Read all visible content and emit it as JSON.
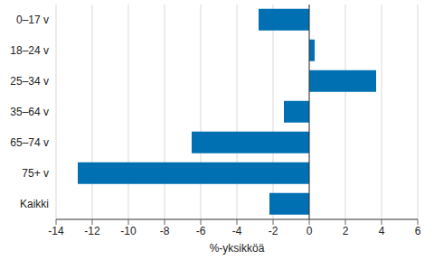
{
  "chart_data": {
    "type": "bar",
    "orientation": "horizontal",
    "categories": [
      "0–17 v",
      "18–24 v",
      "25–34 v",
      "35–64 v",
      "65–74 v",
      "75+ v",
      "Kaikki"
    ],
    "values": [
      -2.8,
      0.3,
      3.7,
      -1.4,
      -6.5,
      -12.8,
      -2.2
    ],
    "color": "#0070b2",
    "xlabel": "%-yksikköä",
    "xlim": [
      -14,
      6
    ],
    "xticks": [
      -14,
      -12,
      -10,
      -8,
      -6,
      -4,
      -2,
      0,
      2,
      4,
      6
    ],
    "grid": true
  }
}
